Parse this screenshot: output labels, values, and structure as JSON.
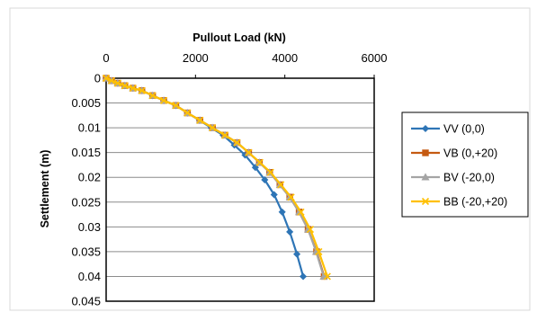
{
  "chart_data": {
    "type": "scatter",
    "xlabel": "Pullout Load (kN)",
    "ylabel": "Settlement (m)",
    "title": "",
    "xlim": [
      0,
      6000
    ],
    "ylim": [
      0,
      0.045
    ],
    "y_inverted": true,
    "x_axis_position": "top",
    "x_ticks": [
      0,
      2000,
      4000,
      6000
    ],
    "x_tick_labels": [
      "0",
      "2000",
      "4000",
      "6000"
    ],
    "y_ticks": [
      0,
      0.005,
      0.01,
      0.015,
      0.02,
      0.025,
      0.03,
      0.035,
      0.04,
      0.045
    ],
    "y_tick_labels": [
      "0",
      "0.005",
      "0.01",
      "0.015",
      "0.02",
      "0.025",
      "0.03",
      "0.035",
      "0.04",
      "0.045"
    ],
    "grid": "horizontal",
    "legend_position": "right",
    "series": [
      {
        "name": "VV (0,0)",
        "color": "#2e75b6",
        "marker": "diamond",
        "x": [
          0,
          120,
          260,
          420,
          600,
          800,
          1040,
          1290,
          1560,
          1820,
          2090,
          2350,
          2620,
          2870,
          3110,
          3340,
          3550,
          3760,
          3940,
          4110,
          4270,
          4410
        ],
        "y": [
          0,
          0.0005,
          0.001,
          0.0015,
          0.002,
          0.0025,
          0.0035,
          0.0045,
          0.0055,
          0.007,
          0.0085,
          0.01,
          0.0115,
          0.0135,
          0.0155,
          0.018,
          0.0205,
          0.0235,
          0.027,
          0.031,
          0.0355,
          0.04
        ]
      },
      {
        "name": "VB (0,+20)",
        "color": "#c55a11",
        "marker": "square",
        "x": [
          0,
          120,
          260,
          420,
          600,
          800,
          1040,
          1290,
          1560,
          1820,
          2100,
          2380,
          2660,
          2930,
          3190,
          3430,
          3660,
          3890,
          4110,
          4320,
          4520,
          4710,
          4880
        ],
        "y": [
          0,
          0.0005,
          0.001,
          0.0015,
          0.002,
          0.0025,
          0.0035,
          0.0045,
          0.0055,
          0.007,
          0.0085,
          0.01,
          0.0115,
          0.013,
          0.015,
          0.017,
          0.019,
          0.0215,
          0.024,
          0.027,
          0.0305,
          0.035,
          0.04
        ]
      },
      {
        "name": "BV (-20,0)",
        "color": "#a5a5a5",
        "marker": "triangle",
        "x": [
          0,
          120,
          260,
          420,
          600,
          800,
          1040,
          1290,
          1560,
          1820,
          2100,
          2380,
          2660,
          2930,
          3190,
          3430,
          3660,
          3890,
          4110,
          4320,
          4520,
          4700,
          4870
        ],
        "y": [
          0,
          0.0005,
          0.001,
          0.0015,
          0.002,
          0.0025,
          0.0035,
          0.0045,
          0.0055,
          0.007,
          0.0085,
          0.01,
          0.0115,
          0.013,
          0.015,
          0.017,
          0.019,
          0.0215,
          0.024,
          0.027,
          0.0305,
          0.035,
          0.04
        ]
      },
      {
        "name": "BB (-20,+20)",
        "color": "#ffc000",
        "marker": "x",
        "x": [
          0,
          120,
          260,
          420,
          600,
          800,
          1040,
          1290,
          1560,
          1820,
          2100,
          2380,
          2660,
          2930,
          3190,
          3440,
          3680,
          3910,
          4140,
          4360,
          4570,
          4760,
          4950
        ],
        "y": [
          0,
          0.0005,
          0.001,
          0.0015,
          0.002,
          0.0025,
          0.0035,
          0.0045,
          0.0055,
          0.007,
          0.0085,
          0.01,
          0.0115,
          0.013,
          0.015,
          0.017,
          0.019,
          0.0215,
          0.024,
          0.027,
          0.0305,
          0.035,
          0.04
        ]
      }
    ]
  }
}
